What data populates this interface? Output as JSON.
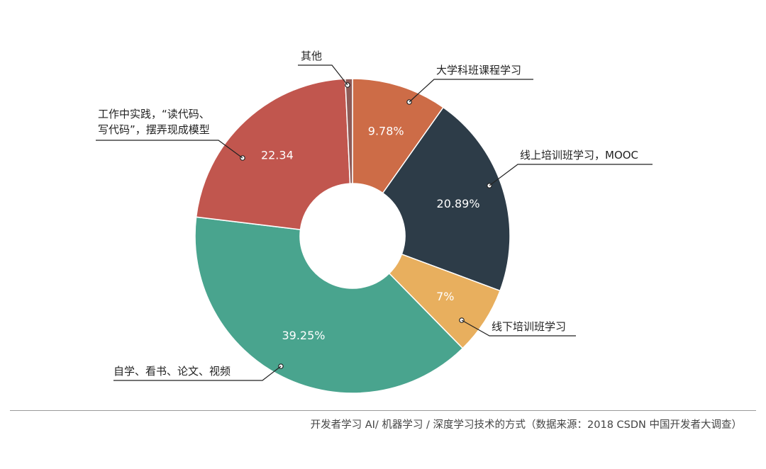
{
  "chart_data": {
    "type": "pie",
    "donut": true,
    "labels": [
      "大学科班课程学习",
      "线上培训班学习，MOOC",
      "线下培训班学习",
      "自学、看书、论文、视频",
      "工作中实践，“读代码、写代码”，摆弄现成模型",
      "其他"
    ],
    "values": [
      9.78,
      20.89,
      7,
      39.25,
      22.34,
      0.74
    ],
    "value_labels": [
      "9.78%",
      "20.89%",
      "7%",
      "39.25%",
      "22.34",
      ""
    ],
    "colors": [
      "#CD6C47",
      "#2D3C48",
      "#E8AF5E",
      "#49A48E",
      "#C1564E",
      "#8E5B57"
    ],
    "callout_lines": [
      [
        "大学科班课程学习"
      ],
      [
        "线上培训班学习，MOOC"
      ],
      [
        "线下培训班学习"
      ],
      [
        "自学、看书、论文、视频"
      ],
      [
        "工作中实践，“读代码、",
        "写代码”，摆弄现成模型"
      ],
      [
        "其他"
      ]
    ],
    "caption": "开发者学习 AI/ 机器学习 / 深度学习技术的方式（数据来源：2018 CSDN 中国开发者大调查）"
  }
}
